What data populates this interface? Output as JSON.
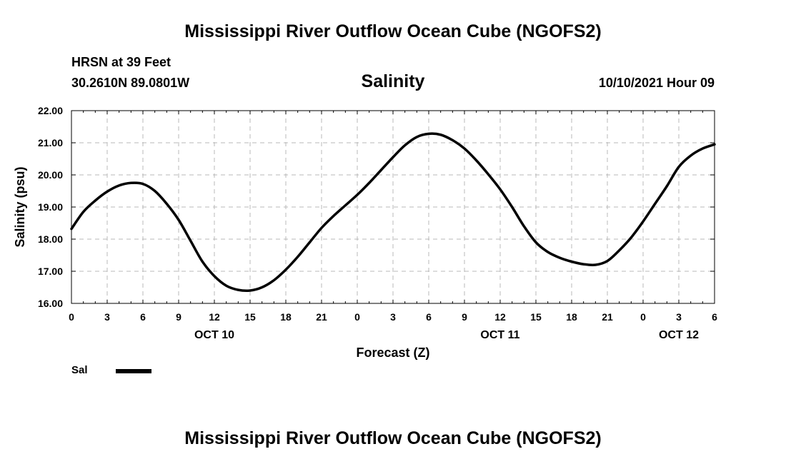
{
  "header": {
    "title": "Mississippi River Outflow Ocean Cube (NGOFS2)",
    "station": "HRSN at 39 Feet",
    "coords": "30.2610N  89.0801W",
    "variable": "Salinity",
    "datetime": "10/10/2021 Hour 09"
  },
  "footer": {
    "title": "Mississippi River Outflow Ocean Cube (NGOFS2)"
  },
  "legend": {
    "label": "Sal",
    "placement": "bottom-left",
    "color": "#000000"
  },
  "chart_data": {
    "type": "line",
    "xlabel": "Forecast (Z)",
    "ylabel": "Salinity (psu)",
    "xlim": [
      0,
      54
    ],
    "ylim": [
      16.0,
      22.0
    ],
    "grid": true,
    "x_ticks": [
      0,
      3,
      6,
      9,
      12,
      15,
      18,
      21,
      24,
      27,
      30,
      33,
      36,
      39,
      42,
      45,
      48,
      51,
      54
    ],
    "x_tick_labels": [
      "0",
      "3",
      "6",
      "9",
      "12",
      "15",
      "18",
      "21",
      "0",
      "3",
      "6",
      "9",
      "12",
      "15",
      "18",
      "21",
      "0",
      "3",
      "6"
    ],
    "y_ticks": [
      16.0,
      17.0,
      18.0,
      19.0,
      20.0,
      21.0,
      22.0
    ],
    "y_tick_labels": [
      "16.00",
      "17.00",
      "18.00",
      "19.00",
      "20.00",
      "21.00",
      "22.00"
    ],
    "date_labels": [
      {
        "x": 12,
        "label": "OCT 10"
      },
      {
        "x": 36,
        "label": "OCT 11"
      },
      {
        "x": 51,
        "label": "OCT 12"
      }
    ],
    "series": [
      {
        "name": "Sal",
        "color": "#000000",
        "x": [
          0,
          1,
          2,
          3,
          4,
          5,
          6,
          7,
          8,
          9,
          10,
          11,
          12,
          13,
          14,
          15,
          16,
          17,
          18,
          19,
          20,
          21,
          22,
          23,
          24,
          25,
          26,
          27,
          28,
          29,
          30,
          31,
          32,
          33,
          34,
          35,
          36,
          37,
          38,
          39,
          40,
          41,
          42,
          43,
          44,
          45,
          46,
          47,
          48,
          49,
          50,
          51,
          52,
          53,
          54
        ],
        "values": [
          18.32,
          18.85,
          19.2,
          19.48,
          19.67,
          19.75,
          19.72,
          19.5,
          19.1,
          18.6,
          17.95,
          17.3,
          16.85,
          16.55,
          16.42,
          16.4,
          16.5,
          16.72,
          17.05,
          17.45,
          17.9,
          18.35,
          18.72,
          19.05,
          19.38,
          19.75,
          20.15,
          20.55,
          20.92,
          21.18,
          21.28,
          21.25,
          21.08,
          20.82,
          20.45,
          20.02,
          19.55,
          19.0,
          18.4,
          17.9,
          17.6,
          17.42,
          17.3,
          17.22,
          17.2,
          17.32,
          17.65,
          18.05,
          18.55,
          19.1,
          19.65,
          20.25,
          20.6,
          20.82,
          20.95
        ]
      }
    ]
  }
}
